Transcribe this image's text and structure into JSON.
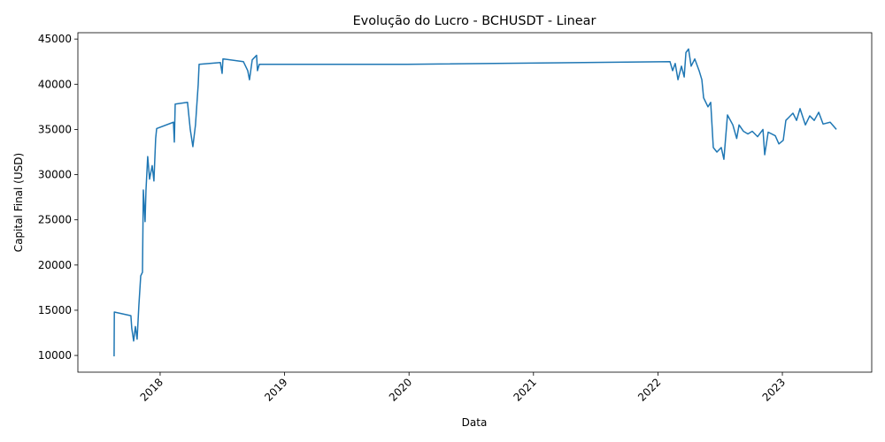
{
  "chart_data": {
    "type": "line",
    "title": "Evolução do Lucro - BCHUSDT - Linear",
    "x_label": "Data",
    "y_label": "Capital Final (USD)",
    "xlim": [
      2017.339,
      2023.718
    ],
    "xticks": [
      2018,
      2019,
      2020,
      2021,
      2022,
      2023
    ],
    "ylim": [
      8150,
      45700
    ],
    "yticks": [
      10000,
      15000,
      20000,
      25000,
      30000,
      35000,
      40000,
      45000
    ],
    "grid": false,
    "series": [
      {
        "name": "Capital Final",
        "color": "#1f77b4",
        "x": [
          2017.63,
          2017.632,
          2017.765,
          2017.772,
          2017.787,
          2017.801,
          2017.815,
          2017.829,
          2017.844,
          2017.858,
          2017.865,
          2017.879,
          2017.886,
          2017.9,
          2017.915,
          2017.936,
          2017.95,
          2017.964,
          2017.972,
          2018.107,
          2018.114,
          2018.121,
          2018.22,
          2018.242,
          2018.263,
          2018.284,
          2018.306,
          2018.313,
          2018.484,
          2018.498,
          2018.505,
          2018.669,
          2018.704,
          2018.718,
          2018.74,
          2018.775,
          2018.782,
          2018.797,
          2019.984,
          2022.097,
          2022.118,
          2022.139,
          2022.161,
          2022.189,
          2022.211,
          2022.225,
          2022.246,
          2022.267,
          2022.296,
          2022.331,
          2022.353,
          2022.367,
          2022.402,
          2022.424,
          2022.445,
          2022.474,
          2022.509,
          2022.53,
          2022.559,
          2022.602,
          2022.633,
          2022.652,
          2022.687,
          2022.723,
          2022.758,
          2022.801,
          2022.844,
          2022.858,
          2022.886,
          2022.943,
          2022.972,
          2023.007,
          2023.028,
          2023.085,
          2023.114,
          2023.142,
          2023.185,
          2023.22,
          2023.256,
          2023.292,
          2023.327,
          2023.384,
          2023.434
        ],
        "values": [
          9900,
          14800,
          14400,
          13000,
          11600,
          13200,
          11800,
          15500,
          18800,
          19200,
          28300,
          24800,
          28200,
          32000,
          29500,
          31000,
          29300,
          34000,
          35100,
          35800,
          33600,
          37800,
          38000,
          35000,
          33100,
          35500,
          40000,
          42200,
          42400,
          41200,
          42800,
          42500,
          41500,
          40500,
          42700,
          43200,
          41500,
          42200,
          42200,
          42500,
          41500,
          42300,
          40500,
          42000,
          40800,
          43500,
          43900,
          42000,
          42800,
          41500,
          40500,
          38500,
          37500,
          38000,
          33000,
          32500,
          33000,
          31700,
          36600,
          35500,
          34000,
          35500,
          34800,
          34500,
          34800,
          34200,
          35000,
          32200,
          34700,
          34300,
          33400,
          33800,
          36000,
          36800,
          36000,
          37300,
          35500,
          36500,
          36000,
          36900,
          35600,
          35800,
          35000
        ]
      }
    ]
  }
}
